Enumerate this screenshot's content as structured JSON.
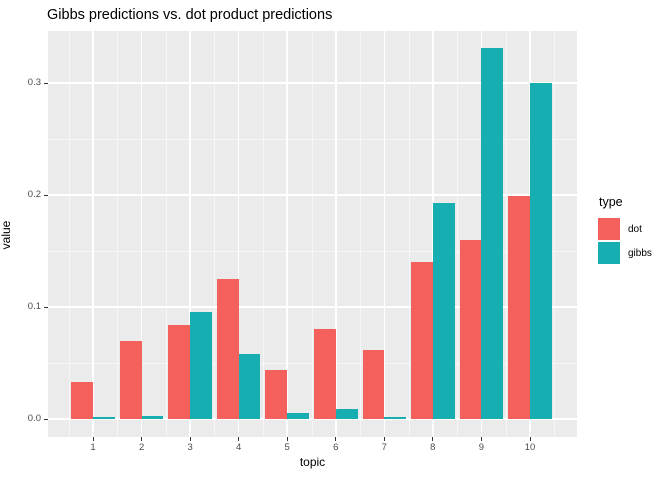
{
  "title": "Gibbs predictions vs. dot product predictions",
  "x_axis": {
    "label": "topic",
    "ticks": [
      "1",
      "2",
      "3",
      "4",
      "5",
      "6",
      "7",
      "8",
      "9",
      "10"
    ]
  },
  "y_axis": {
    "label": "value",
    "ticks": [
      "0.0",
      "0.1",
      "0.2",
      "0.3"
    ],
    "tick_values": [
      0,
      0.1,
      0.2,
      0.3
    ]
  },
  "legend": {
    "title": "type",
    "items": [
      {
        "label": "dot",
        "color": "#F4605C"
      },
      {
        "label": "gibbs",
        "color": "#17AEB1"
      }
    ]
  },
  "colors": {
    "panel_bg": "#EBEBEB",
    "grid": "#FFFFFF",
    "dot": "#F4605C",
    "gibbs": "#17AEB1",
    "tick_text": "#4D4D4D",
    "text": "#000000"
  },
  "chart_data": {
    "type": "bar",
    "title": "Gibbs predictions vs. dot product predictions",
    "xlabel": "topic",
    "ylabel": "value",
    "categories": [
      1,
      2,
      3,
      4,
      5,
      6,
      7,
      8,
      9,
      10
    ],
    "series": [
      {
        "name": "dot",
        "color": "#F4605C",
        "values": [
          0.033,
          0.07,
          0.084,
          0.125,
          0.044,
          0.08,
          0.062,
          0.14,
          0.16,
          0.199
        ]
      },
      {
        "name": "gibbs",
        "color": "#17AEB1",
        "values": [
          0.002,
          0.003,
          0.096,
          0.058,
          0.005,
          0.009,
          0.002,
          0.193,
          0.331,
          0.3
        ]
      }
    ],
    "ylim": [
      0,
      0.347
    ],
    "y_major_gridlines": [
      0,
      0.1,
      0.2,
      0.3
    ],
    "y_minor_gridlines": [
      0.05,
      0.15,
      0.25
    ],
    "grid": true,
    "legend_position": "right"
  }
}
